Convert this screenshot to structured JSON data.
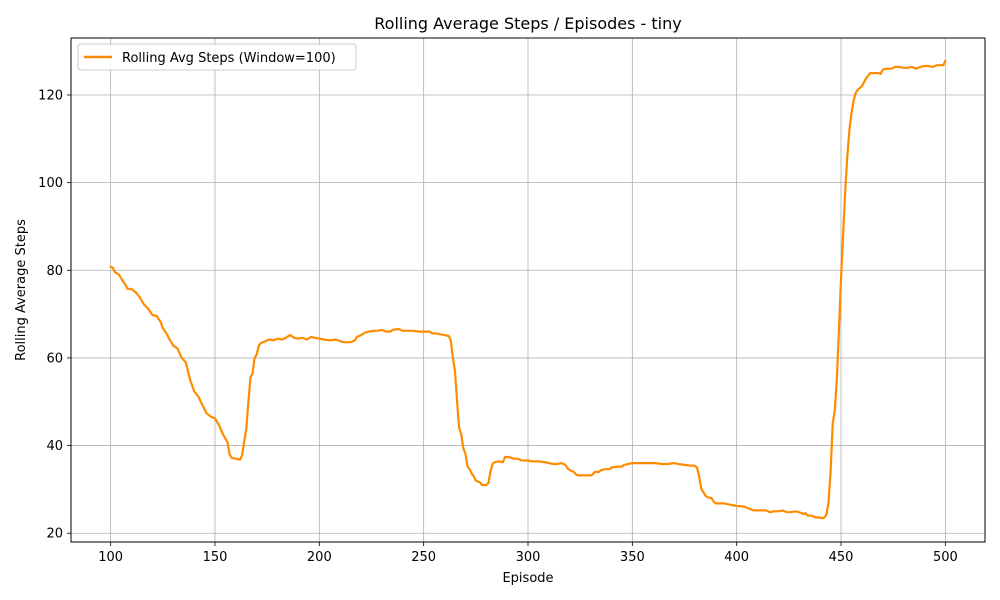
{
  "chart_data": {
    "type": "line",
    "title": "Rolling Average Steps / Episodes - tiny",
    "xlabel": "Episode",
    "ylabel": "Rolling Average Steps",
    "xlim": [
      81,
      519
    ],
    "ylim": [
      18,
      133
    ],
    "xticks": [
      100,
      150,
      200,
      250,
      300,
      350,
      400,
      450,
      500
    ],
    "yticks": [
      20,
      40,
      60,
      80,
      100,
      120
    ],
    "grid": true,
    "legend_position": "top-left",
    "series": [
      {
        "name": "Rolling Avg Steps (Window=100)",
        "color": "#ff8c00",
        "points": [
          [
            100,
            80.8
          ],
          [
            101,
            80.6
          ],
          [
            102,
            79.6
          ],
          [
            104,
            79.0
          ],
          [
            105,
            78.2
          ],
          [
            106,
            77.4
          ],
          [
            107,
            76.8
          ],
          [
            108,
            75.8
          ],
          [
            110,
            75.7
          ],
          [
            112,
            75.0
          ],
          [
            114,
            73.8
          ],
          [
            116,
            72.2
          ],
          [
            118,
            71.2
          ],
          [
            120,
            69.8
          ],
          [
            122,
            69.6
          ],
          [
            124,
            68.2
          ],
          [
            125,
            66.8
          ],
          [
            127,
            65.4
          ],
          [
            128,
            64.4
          ],
          [
            130,
            62.8
          ],
          [
            132,
            62.2
          ],
          [
            134,
            60.0
          ],
          [
            136,
            59.0
          ],
          [
            138,
            55.2
          ],
          [
            140,
            52.4
          ],
          [
            142,
            51.2
          ],
          [
            144,
            49.2
          ],
          [
            146,
            47.4
          ],
          [
            148,
            46.6
          ],
          [
            150,
            46.2
          ],
          [
            152,
            44.6
          ],
          [
            154,
            42.4
          ],
          [
            156,
            40.8
          ],
          [
            157,
            38.0
          ],
          [
            158,
            37.2
          ],
          [
            160,
            37.0
          ],
          [
            162,
            36.8
          ],
          [
            163,
            37.8
          ],
          [
            164,
            41.0
          ],
          [
            165,
            43.8
          ],
          [
            166,
            50.0
          ],
          [
            167,
            55.6
          ],
          [
            168,
            56.4
          ],
          [
            169,
            60.0
          ],
          [
            170,
            60.8
          ],
          [
            171,
            62.8
          ],
          [
            172,
            63.4
          ],
          [
            174,
            63.8
          ],
          [
            176,
            64.2
          ],
          [
            178,
            64.0
          ],
          [
            180,
            64.4
          ],
          [
            182,
            64.2
          ],
          [
            184,
            64.6
          ],
          [
            186,
            65.2
          ],
          [
            188,
            64.6
          ],
          [
            190,
            64.4
          ],
          [
            192,
            64.6
          ],
          [
            194,
            64.2
          ],
          [
            196,
            64.8
          ],
          [
            198,
            64.6
          ],
          [
            200,
            64.4
          ],
          [
            202,
            64.2
          ],
          [
            205,
            64.0
          ],
          [
            208,
            64.2
          ],
          [
            210,
            63.8
          ],
          [
            212,
            63.6
          ],
          [
            215,
            63.6
          ],
          [
            217,
            64.0
          ],
          [
            218,
            64.8
          ],
          [
            220,
            65.2
          ],
          [
            222,
            65.8
          ],
          [
            224,
            66.0
          ],
          [
            226,
            66.2
          ],
          [
            228,
            66.2
          ],
          [
            230,
            66.4
          ],
          [
            232,
            66.0
          ],
          [
            234,
            66.0
          ],
          [
            235,
            66.4
          ],
          [
            238,
            66.6
          ],
          [
            240,
            66.2
          ],
          [
            242,
            66.2
          ],
          [
            245,
            66.2
          ],
          [
            248,
            66.0
          ],
          [
            250,
            66.0
          ],
          [
            253,
            66.0
          ],
          [
            254,
            65.6
          ],
          [
            256,
            65.6
          ],
          [
            258,
            65.4
          ],
          [
            260,
            65.2
          ],
          [
            262,
            65.0
          ],
          [
            263,
            64.0
          ],
          [
            264,
            60.0
          ],
          [
            265,
            57.0
          ],
          [
            266,
            50.0
          ],
          [
            267,
            44.0
          ],
          [
            268,
            42.6
          ],
          [
            269,
            39.4
          ],
          [
            270,
            38.2
          ],
          [
            271,
            35.2
          ],
          [
            272,
            34.6
          ],
          [
            273,
            33.6
          ],
          [
            274,
            33.0
          ],
          [
            275,
            32.0
          ],
          [
            277,
            31.6
          ],
          [
            278,
            31.0
          ],
          [
            280,
            31.0
          ],
          [
            281,
            31.4
          ],
          [
            282,
            34.0
          ],
          [
            283,
            35.8
          ],
          [
            284,
            36.2
          ],
          [
            286,
            36.4
          ],
          [
            288,
            36.2
          ],
          [
            289,
            37.4
          ],
          [
            291,
            37.4
          ],
          [
            293,
            37.0
          ],
          [
            295,
            37.0
          ],
          [
            297,
            36.6
          ],
          [
            300,
            36.6
          ],
          [
            302,
            36.4
          ],
          [
            305,
            36.4
          ],
          [
            308,
            36.2
          ],
          [
            310,
            36.0
          ],
          [
            312,
            35.8
          ],
          [
            314,
            35.8
          ],
          [
            316,
            36.0
          ],
          [
            318,
            35.6
          ],
          [
            319,
            34.8
          ],
          [
            320,
            34.4
          ],
          [
            322,
            34.0
          ],
          [
            323,
            33.4
          ],
          [
            324,
            33.2
          ],
          [
            326,
            33.2
          ],
          [
            328,
            33.2
          ],
          [
            330,
            33.2
          ],
          [
            331,
            33.4
          ],
          [
            332,
            34.0
          ],
          [
            334,
            34.0
          ],
          [
            335,
            34.4
          ],
          [
            337,
            34.6
          ],
          [
            339,
            34.6
          ],
          [
            340,
            35.0
          ],
          [
            343,
            35.2
          ],
          [
            345,
            35.2
          ],
          [
            346,
            35.6
          ],
          [
            348,
            35.8
          ],
          [
            350,
            36.0
          ],
          [
            352,
            36.0
          ],
          [
            355,
            36.0
          ],
          [
            358,
            36.0
          ],
          [
            361,
            36.0
          ],
          [
            364,
            35.8
          ],
          [
            367,
            35.8
          ],
          [
            370,
            36.0
          ],
          [
            372,
            35.8
          ],
          [
            375,
            35.6
          ],
          [
            378,
            35.4
          ],
          [
            380,
            35.4
          ],
          [
            381,
            35.0
          ],
          [
            382,
            33.0
          ],
          [
            383,
            30.2
          ],
          [
            384,
            29.4
          ],
          [
            385,
            28.6
          ],
          [
            386,
            28.2
          ],
          [
            388,
            28.0
          ],
          [
            389,
            27.2
          ],
          [
            390,
            26.8
          ],
          [
            392,
            26.8
          ],
          [
            394,
            26.8
          ],
          [
            396,
            26.6
          ],
          [
            398,
            26.4
          ],
          [
            400,
            26.2
          ],
          [
            402,
            26.2
          ],
          [
            404,
            26.0
          ],
          [
            406,
            25.6
          ],
          [
            408,
            25.2
          ],
          [
            410,
            25.2
          ],
          [
            412,
            25.2
          ],
          [
            414,
            25.2
          ],
          [
            416,
            24.8
          ],
          [
            418,
            25.0
          ],
          [
            420,
            25.0
          ],
          [
            422,
            25.2
          ],
          [
            424,
            24.8
          ],
          [
            426,
            24.8
          ],
          [
            428,
            25.0
          ],
          [
            430,
            24.8
          ],
          [
            432,
            24.4
          ],
          [
            433,
            24.6
          ],
          [
            434,
            24.0
          ],
          [
            436,
            24.0
          ],
          [
            438,
            23.6
          ],
          [
            440,
            23.6
          ],
          [
            441,
            23.4
          ],
          [
            442,
            23.6
          ],
          [
            443,
            24.2
          ],
          [
            444,
            27.0
          ],
          [
            445,
            34.0
          ],
          [
            446,
            45.0
          ],
          [
            447,
            48.0
          ],
          [
            448,
            55.0
          ],
          [
            449,
            66.0
          ],
          [
            450,
            78.0
          ],
          [
            451,
            88.0
          ],
          [
            452,
            98.0
          ],
          [
            453,
            106.0
          ],
          [
            454,
            112.0
          ],
          [
            455,
            115.8
          ],
          [
            456,
            118.6
          ],
          [
            457,
            120.4
          ],
          [
            458,
            121.2
          ],
          [
            460,
            122.0
          ],
          [
            462,
            123.8
          ],
          [
            464,
            125.0
          ],
          [
            466,
            125.0
          ],
          [
            468,
            125.0
          ],
          [
            469,
            124.8
          ],
          [
            470,
            125.8
          ],
          [
            472,
            126.0
          ],
          [
            474,
            126.0
          ],
          [
            476,
            126.4
          ],
          [
            478,
            126.4
          ],
          [
            480,
            126.2
          ],
          [
            482,
            126.2
          ],
          [
            484,
            126.4
          ],
          [
            486,
            126.0
          ],
          [
            488,
            126.4
          ],
          [
            490,
            126.6
          ],
          [
            492,
            126.6
          ],
          [
            494,
            126.4
          ],
          [
            496,
            126.8
          ],
          [
            498,
            126.8
          ],
          [
            499,
            126.8
          ],
          [
            500,
            127.8
          ]
        ]
      }
    ]
  }
}
